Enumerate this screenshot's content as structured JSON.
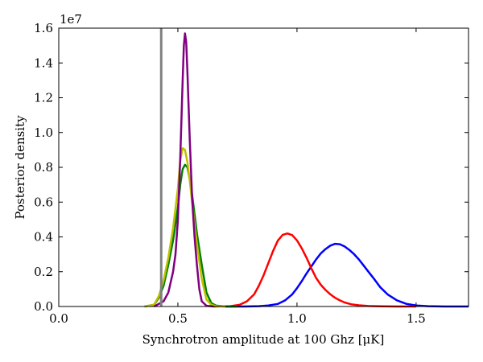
{
  "chart_data": {
    "type": "line",
    "title": "",
    "xlabel": "Synchrotron amplitude at 100 Ghz [μK]",
    "ylabel": "Posterior density",
    "y_scale_label": "1e7",
    "xlim": [
      0.0,
      1.72
    ],
    "ylim": [
      0.0,
      1.6
    ],
    "x_ticks": [
      0.0,
      0.5,
      1.0,
      1.5
    ],
    "x_tick_labels": [
      "0.0",
      "0.5",
      "1.0",
      "1.5"
    ],
    "y_ticks": [
      0.0,
      0.2,
      0.4,
      0.6,
      0.8,
      1.0,
      1.2,
      1.4,
      1.6
    ],
    "y_tick_labels": [
      "0.0",
      "0.2",
      "0.4",
      "0.6",
      "0.8",
      "1.0",
      "1.2",
      "1.4",
      "1.6"
    ],
    "grid": false,
    "legend": "none",
    "reference_line": {
      "x": 0.43,
      "color": "#808080"
    },
    "series": [
      {
        "color": "#0000ff",
        "x": [
          0.7,
          0.78,
          0.84,
          0.88,
          0.92,
          0.95,
          0.98,
          1.0,
          1.02,
          1.04,
          1.06,
          1.08,
          1.1,
          1.12,
          1.14,
          1.16,
          1.18,
          1.2,
          1.22,
          1.24,
          1.26,
          1.28,
          1.3,
          1.32,
          1.35,
          1.38,
          1.42,
          1.46,
          1.5,
          1.55,
          1.62,
          1.72
        ],
        "y": [
          0.0,
          0.0,
          0.002,
          0.006,
          0.015,
          0.035,
          0.07,
          0.105,
          0.145,
          0.19,
          0.23,
          0.27,
          0.305,
          0.33,
          0.35,
          0.36,
          0.358,
          0.345,
          0.325,
          0.3,
          0.27,
          0.235,
          0.2,
          0.165,
          0.11,
          0.07,
          0.035,
          0.015,
          0.006,
          0.002,
          0.0,
          0.0
        ]
      },
      {
        "color": "#ff0000",
        "x": [
          0.65,
          0.72,
          0.76,
          0.79,
          0.82,
          0.84,
          0.86,
          0.88,
          0.9,
          0.92,
          0.94,
          0.96,
          0.98,
          1.0,
          1.02,
          1.04,
          1.06,
          1.08,
          1.1,
          1.12,
          1.14,
          1.16,
          1.18,
          1.2,
          1.23,
          1.26,
          1.3,
          1.35,
          1.42,
          1.5
        ],
        "y": [
          0.0,
          0.002,
          0.01,
          0.03,
          0.07,
          0.12,
          0.18,
          0.25,
          0.32,
          0.38,
          0.412,
          0.42,
          0.41,
          0.38,
          0.335,
          0.28,
          0.22,
          0.165,
          0.125,
          0.095,
          0.07,
          0.05,
          0.035,
          0.023,
          0.012,
          0.007,
          0.003,
          0.001,
          0.0,
          0.0
        ]
      },
      {
        "color": "#008000",
        "x": [
          0.36,
          0.4,
          0.42,
          0.44,
          0.46,
          0.48,
          0.5,
          0.51,
          0.52,
          0.53,
          0.54,
          0.55,
          0.56,
          0.57,
          0.58,
          0.6,
          0.62,
          0.64,
          0.66,
          0.7,
          0.75
        ],
        "y": [
          0.0,
          0.01,
          0.05,
          0.12,
          0.24,
          0.38,
          0.57,
          0.7,
          0.79,
          0.815,
          0.8,
          0.73,
          0.64,
          0.53,
          0.42,
          0.24,
          0.08,
          0.02,
          0.005,
          0.0,
          0.0
        ]
      },
      {
        "color": "#bfbf00",
        "x": [
          0.36,
          0.4,
          0.42,
          0.44,
          0.46,
          0.48,
          0.5,
          0.51,
          0.52,
          0.53,
          0.54,
          0.55,
          0.56,
          0.57,
          0.58,
          0.6,
          0.62,
          0.64,
          0.66,
          0.7
        ],
        "y": [
          0.0,
          0.01,
          0.06,
          0.15,
          0.28,
          0.45,
          0.68,
          0.84,
          0.91,
          0.9,
          0.83,
          0.72,
          0.6,
          0.47,
          0.36,
          0.16,
          0.04,
          0.01,
          0.002,
          0.0
        ]
      },
      {
        "color": "#800080",
        "x": [
          0.4,
          0.44,
          0.46,
          0.48,
          0.49,
          0.5,
          0.51,
          0.52,
          0.525,
          0.53,
          0.535,
          0.54,
          0.55,
          0.56,
          0.57,
          0.58,
          0.59,
          0.6,
          0.62,
          0.65
        ],
        "y": [
          0.0,
          0.03,
          0.08,
          0.2,
          0.3,
          0.5,
          0.85,
          1.3,
          1.5,
          1.57,
          1.52,
          1.35,
          0.95,
          0.62,
          0.4,
          0.24,
          0.1,
          0.03,
          0.004,
          0.0
        ]
      }
    ]
  }
}
